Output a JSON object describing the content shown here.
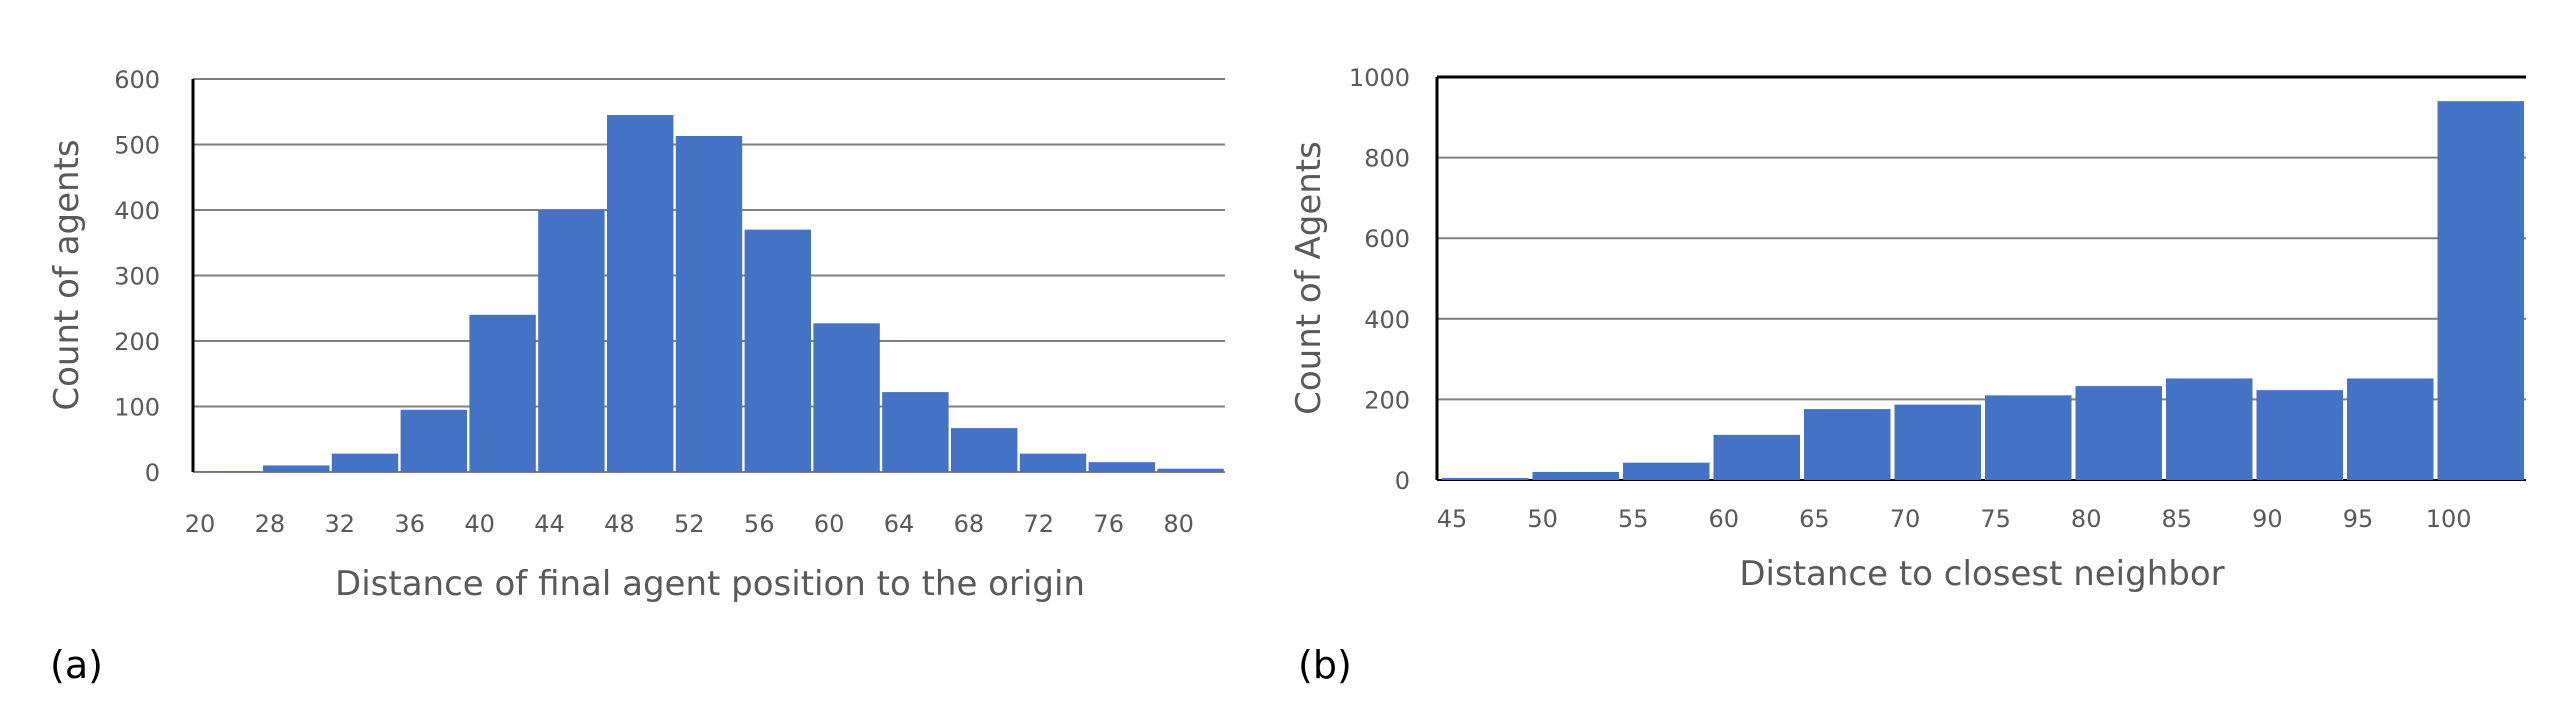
{
  "bar_color": "#4472C4",
  "grid_color": "#7f7f7f",
  "chart_data": [
    {
      "type": "bar",
      "panel_label": "(a)",
      "title": "",
      "xlabel": "Distance of final agent position to the origin",
      "ylabel": "Count of agents",
      "ylim": [
        0,
        600
      ],
      "yticks": [
        "0",
        "100",
        "200",
        "300",
        "400",
        "500",
        "600"
      ],
      "xtick_labels": [
        "20",
        "28",
        "32",
        "36",
        "40",
        "44",
        "48",
        "52",
        "56",
        "60",
        "64",
        "68",
        "72",
        "76",
        "80"
      ],
      "values": [
        1,
        10,
        28,
        95,
        240,
        400,
        545,
        513,
        370,
        227,
        122,
        67,
        28,
        15,
        5
      ],
      "grid": true,
      "axis_border": "left-gridlines"
    },
    {
      "type": "bar",
      "panel_label": "(b)",
      "title": "",
      "xlabel": "Distance to closest neighbor",
      "ylabel": "Count of Agents",
      "ylim": [
        0,
        1000
      ],
      "yticks": [
        "0",
        "200",
        "400",
        "600",
        "800",
        "1000"
      ],
      "xtick_labels": [
        "45",
        "50",
        "55",
        "60",
        "65",
        "70",
        "75",
        "80",
        "85",
        "90",
        "95",
        "100"
      ],
      "values": [
        5,
        20,
        43,
        112,
        176,
        187,
        210,
        233,
        252,
        223,
        252,
        940
      ],
      "grid": true,
      "axis_border": "box"
    }
  ]
}
